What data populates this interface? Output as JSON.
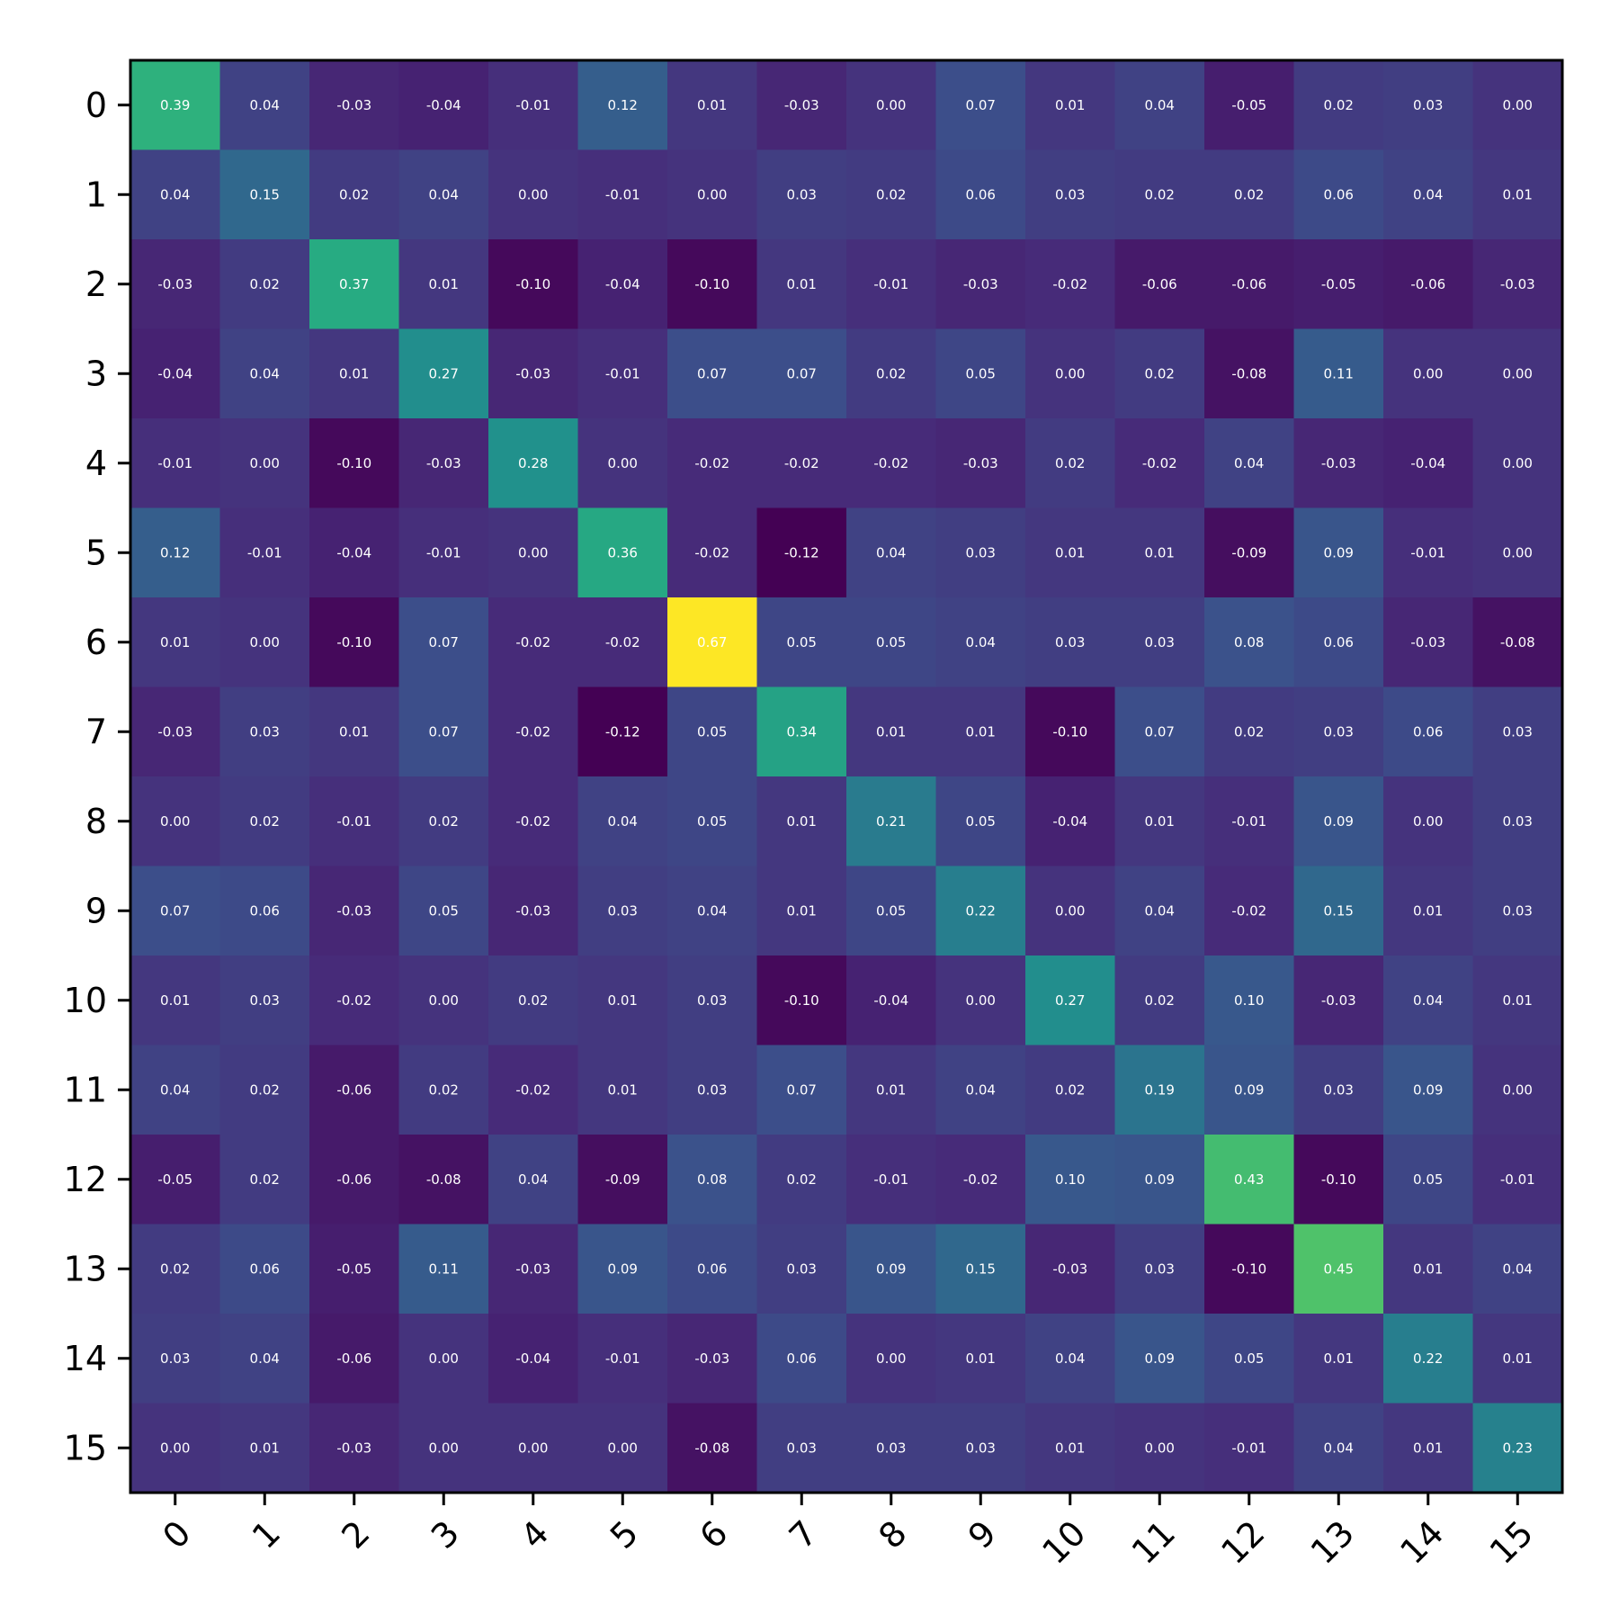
{
  "chart_data": {
    "type": "heatmap",
    "title": "",
    "xlabel": "",
    "ylabel": "",
    "x_tick_labels": [
      "0",
      "1",
      "2",
      "3",
      "4",
      "5",
      "6",
      "7",
      "8",
      "9",
      "10",
      "11",
      "12",
      "13",
      "14",
      "15"
    ],
    "y_tick_labels": [
      "0",
      "1",
      "2",
      "3",
      "4",
      "5",
      "6",
      "7",
      "8",
      "9",
      "10",
      "11",
      "12",
      "13",
      "14",
      "15"
    ],
    "colormap": "viridis",
    "value_range": [
      -0.12,
      0.67
    ],
    "annotations": "values printed in each cell with two decimals",
    "grid": false,
    "legend": "none",
    "values": [
      [
        0.39,
        0.04,
        -0.03,
        -0.04,
        -0.01,
        0.12,
        0.01,
        -0.03,
        0.0,
        0.07,
        0.01,
        0.04,
        -0.05,
        0.02,
        0.03,
        0.0
      ],
      [
        0.04,
        0.15,
        0.02,
        0.04,
        -0.0,
        -0.01,
        0.0,
        0.03,
        0.02,
        0.06,
        0.03,
        0.02,
        0.02,
        0.06,
        0.04,
        0.01
      ],
      [
        -0.03,
        0.02,
        0.37,
        0.01,
        -0.1,
        -0.04,
        -0.1,
        0.01,
        -0.01,
        -0.03,
        -0.02,
        -0.06,
        -0.06,
        -0.05,
        -0.06,
        -0.03
      ],
      [
        -0.04,
        0.04,
        0.01,
        0.27,
        -0.03,
        -0.01,
        0.07,
        0.07,
        0.02,
        0.05,
        -0.0,
        0.02,
        -0.08,
        0.11,
        -0.0,
        -0.0
      ],
      [
        -0.01,
        -0.0,
        -0.1,
        -0.03,
        0.28,
        -0.0,
        -0.02,
        -0.02,
        -0.02,
        -0.03,
        0.02,
        -0.02,
        0.04,
        -0.03,
        -0.04,
        0.0
      ],
      [
        0.12,
        -0.01,
        -0.04,
        -0.01,
        -0.0,
        0.36,
        -0.02,
        -0.12,
        0.04,
        0.03,
        0.01,
        0.01,
        -0.09,
        0.09,
        -0.01,
        0.0
      ],
      [
        0.01,
        0.0,
        -0.1,
        0.07,
        -0.02,
        -0.02,
        0.67,
        0.05,
        0.05,
        0.04,
        0.03,
        0.03,
        0.08,
        0.06,
        -0.03,
        -0.08
      ],
      [
        -0.03,
        0.03,
        0.01,
        0.07,
        -0.02,
        -0.12,
        0.05,
        0.34,
        0.01,
        0.01,
        -0.1,
        0.07,
        0.02,
        0.03,
        0.06,
        0.03
      ],
      [
        0.0,
        0.02,
        -0.01,
        0.02,
        -0.02,
        0.04,
        0.05,
        0.01,
        0.21,
        0.05,
        -0.04,
        0.01,
        -0.01,
        0.09,
        0.0,
        0.03
      ],
      [
        0.07,
        0.06,
        -0.03,
        0.05,
        -0.03,
        0.03,
        0.04,
        0.01,
        0.05,
        0.22,
        0.0,
        0.04,
        -0.02,
        0.15,
        0.01,
        0.03
      ],
      [
        0.01,
        0.03,
        -0.02,
        -0.0,
        0.02,
        0.01,
        0.03,
        -0.1,
        -0.04,
        0.0,
        0.27,
        0.02,
        0.1,
        -0.03,
        0.04,
        0.01
      ],
      [
        0.04,
        0.02,
        -0.06,
        0.02,
        -0.02,
        0.01,
        0.03,
        0.07,
        0.01,
        0.04,
        0.02,
        0.19,
        0.09,
        0.03,
        0.09,
        0.0
      ],
      [
        -0.05,
        0.02,
        -0.06,
        -0.08,
        0.04,
        -0.09,
        0.08,
        0.02,
        -0.01,
        -0.02,
        0.1,
        0.09,
        0.43,
        -0.1,
        0.05,
        -0.01
      ],
      [
        0.02,
        0.06,
        -0.05,
        0.11,
        -0.03,
        0.09,
        0.06,
        0.03,
        0.09,
        0.15,
        -0.03,
        0.03,
        -0.1,
        0.45,
        0.01,
        0.04
      ],
      [
        0.03,
        0.04,
        -0.06,
        -0.0,
        -0.04,
        -0.01,
        -0.03,
        0.06,
        0.0,
        0.01,
        0.04,
        0.09,
        0.05,
        0.01,
        0.22,
        0.01
      ],
      [
        0.0,
        0.01,
        -0.03,
        -0.0,
        0.0,
        0.0,
        -0.08,
        0.03,
        0.03,
        0.03,
        0.01,
        0.0,
        -0.01,
        0.04,
        0.01,
        0.23
      ]
    ]
  }
}
